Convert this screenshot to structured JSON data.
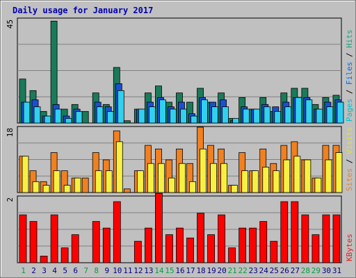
{
  "chart_data": {
    "type": "bar",
    "title": "Daily usage for January 2017",
    "categories": [
      "1",
      "2",
      "3",
      "4",
      "5",
      "6",
      "7",
      "8",
      "9",
      "10",
      "11",
      "12",
      "13",
      "14",
      "15",
      "16",
      "17",
      "18",
      "19",
      "20",
      "21",
      "22",
      "23",
      "24",
      "25",
      "26",
      "27",
      "28",
      "29",
      "30",
      "31"
    ],
    "weekend_days": [
      "1",
      "7",
      "8",
      "14",
      "15",
      "21",
      "22",
      "28",
      "29"
    ],
    "panels": [
      {
        "id": "top",
        "ymax": 45,
        "ymax_label": "45",
        "right_labels": [
          {
            "text": "Pages",
            "color": "#00c0d0"
          },
          {
            "text": " / ",
            "color": "#000000"
          },
          {
            "text": "Files",
            "color": "#0070e0"
          },
          {
            "text": " / ",
            "color": "#000000"
          },
          {
            "text": "Hits",
            "color": "#20a080"
          }
        ],
        "series": [
          {
            "name": "Hits",
            "color": "#1a7a5a",
            "values": [
              19,
              14,
              5,
              44,
              6,
              8,
              5,
              13,
              8,
              24,
              1,
              6,
              13,
              16,
              9,
              13,
              9,
              15,
              9,
              13,
              2,
              11,
              6,
              11,
              5,
              13,
              15,
              15,
              8,
              11,
              12
            ]
          },
          {
            "name": "Files",
            "color": "#1a50d0",
            "values": [
              9,
              10,
              3,
              8,
              3,
              6,
              0,
              9,
              7,
              17,
              0,
              6,
              9,
              11,
              7,
              9,
              4,
              11,
              9,
              10,
              1,
              7,
              6,
              8,
              7,
              9,
              11,
              11,
              6,
              9,
              10
            ]
          },
          {
            "name": "Pages",
            "color": "#30d0f0",
            "values": [
              9,
              7,
              3,
              6,
              2,
              5,
              0,
              7,
              5,
              14,
              0,
              6,
              7,
              10,
              6,
              6,
              3,
              10,
              7,
              7,
              2,
              6,
              6,
              7,
              5,
              7,
              11,
              10,
              6,
              7,
              9
            ]
          }
        ]
      },
      {
        "id": "middle",
        "ymax": 18,
        "ymax_label": "18",
        "right_labels": [
          {
            "text": "Sites",
            "color": "#f08020"
          },
          {
            "text": " / ",
            "color": "#000000"
          },
          {
            "text": "Visits",
            "color": "#e0e040"
          }
        ],
        "series": [
          {
            "name": "Visits",
            "color": "#f08020",
            "values": [
              10,
              6,
              3,
              11,
              6,
              4,
              4,
              11,
              9,
              17,
              1,
              6,
              13,
              12,
              9,
              12,
              8,
              18,
              13,
              12,
              2,
              11,
              6,
              12,
              8,
              13,
              14,
              9,
              4,
              13,
              13
            ]
          },
          {
            "name": "Sites",
            "color": "#f8f040",
            "values": [
              10,
              3,
              2,
              6,
              2,
              4,
              0,
              6,
              6,
              14,
              0,
              6,
              8,
              8,
              4,
              8,
              3,
              12,
              8,
              8,
              2,
              6,
              6,
              7,
              6,
              9,
              10,
              9,
              4,
              9,
              11
            ]
          }
        ]
      },
      {
        "id": "bottom",
        "ymax": 2,
        "ymax_label": "2",
        "right_labels": [
          {
            "text": "KBytes",
            "color": "#e02020"
          }
        ],
        "series": [
          {
            "name": "KBytes",
            "color": "#ff0000",
            "values": [
              1.45,
              1.25,
              0.2,
              1.45,
              0.45,
              0.85,
              0,
              1.25,
              1.05,
              1.85,
              0,
              0.65,
              1.05,
              2.1,
              0.85,
              1.05,
              0.75,
              1.5,
              0.85,
              1.45,
              0.45,
              1.05,
              1.05,
              1.25,
              0.65,
              1.85,
              1.85,
              1.45,
              0.85,
              1.45,
              1.45
            ]
          }
        ]
      }
    ]
  }
}
